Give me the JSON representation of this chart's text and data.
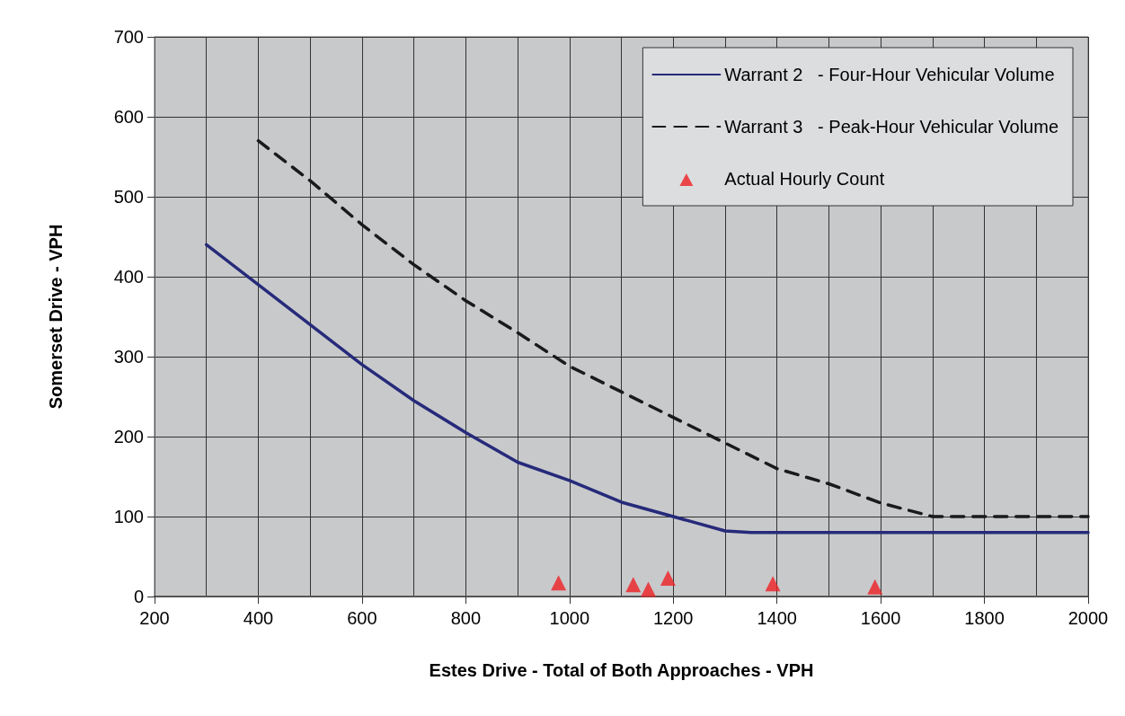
{
  "chart_data": {
    "type": "line",
    "xlabel": "Estes Drive - Total of Both Approaches - VPH",
    "ylabel": "Somerset Drive - VPH",
    "xlim": [
      200,
      2000
    ],
    "xticks": [
      200,
      400,
      600,
      800,
      1000,
      1200,
      1400,
      1600,
      1800,
      2000
    ],
    "ylim": [
      0,
      700
    ],
    "yticks": [
      0,
      100,
      200,
      300,
      400,
      500,
      600,
      700
    ],
    "grid": true,
    "legend": "top right",
    "series": [
      {
        "name": "Warrant 2   - Four-Hour Vehicular Volume",
        "color": "#262a7a",
        "line_style": "solid",
        "marker": "none",
        "x": [
          300,
          400,
          500,
          600,
          700,
          800,
          900,
          1000,
          1100,
          1200,
          1300,
          1350,
          1400,
          1500,
          1600,
          1700,
          1800,
          1900,
          2000
        ],
        "values": [
          440,
          390,
          340,
          290,
          245,
          205,
          168,
          145,
          118,
          100,
          82,
          80,
          80,
          80,
          80,
          80,
          80,
          80,
          80
        ]
      },
      {
        "name": "Warrant 3   - Peak-Hour Vehicular Volume",
        "color": "#1a1a1a",
        "line_style": "dashed",
        "marker": "none",
        "x": [
          400,
          500,
          600,
          700,
          800,
          900,
          1000,
          1100,
          1200,
          1300,
          1400,
          1500,
          1600,
          1700,
          1800,
          1900,
          2000
        ],
        "values": [
          570,
          520,
          465,
          415,
          370,
          330,
          288,
          256,
          224,
          192,
          160,
          141,
          117,
          100,
          100,
          100,
          100
        ]
      },
      {
        "name": "Actual Hourly Count",
        "type": "scatter",
        "color": "#ee2024",
        "marker": "triangle",
        "x": [
          979,
          1123,
          1152,
          1190,
          1392,
          1589
        ],
        "values": [
          17,
          15,
          9,
          23,
          16,
          12
        ]
      }
    ]
  }
}
